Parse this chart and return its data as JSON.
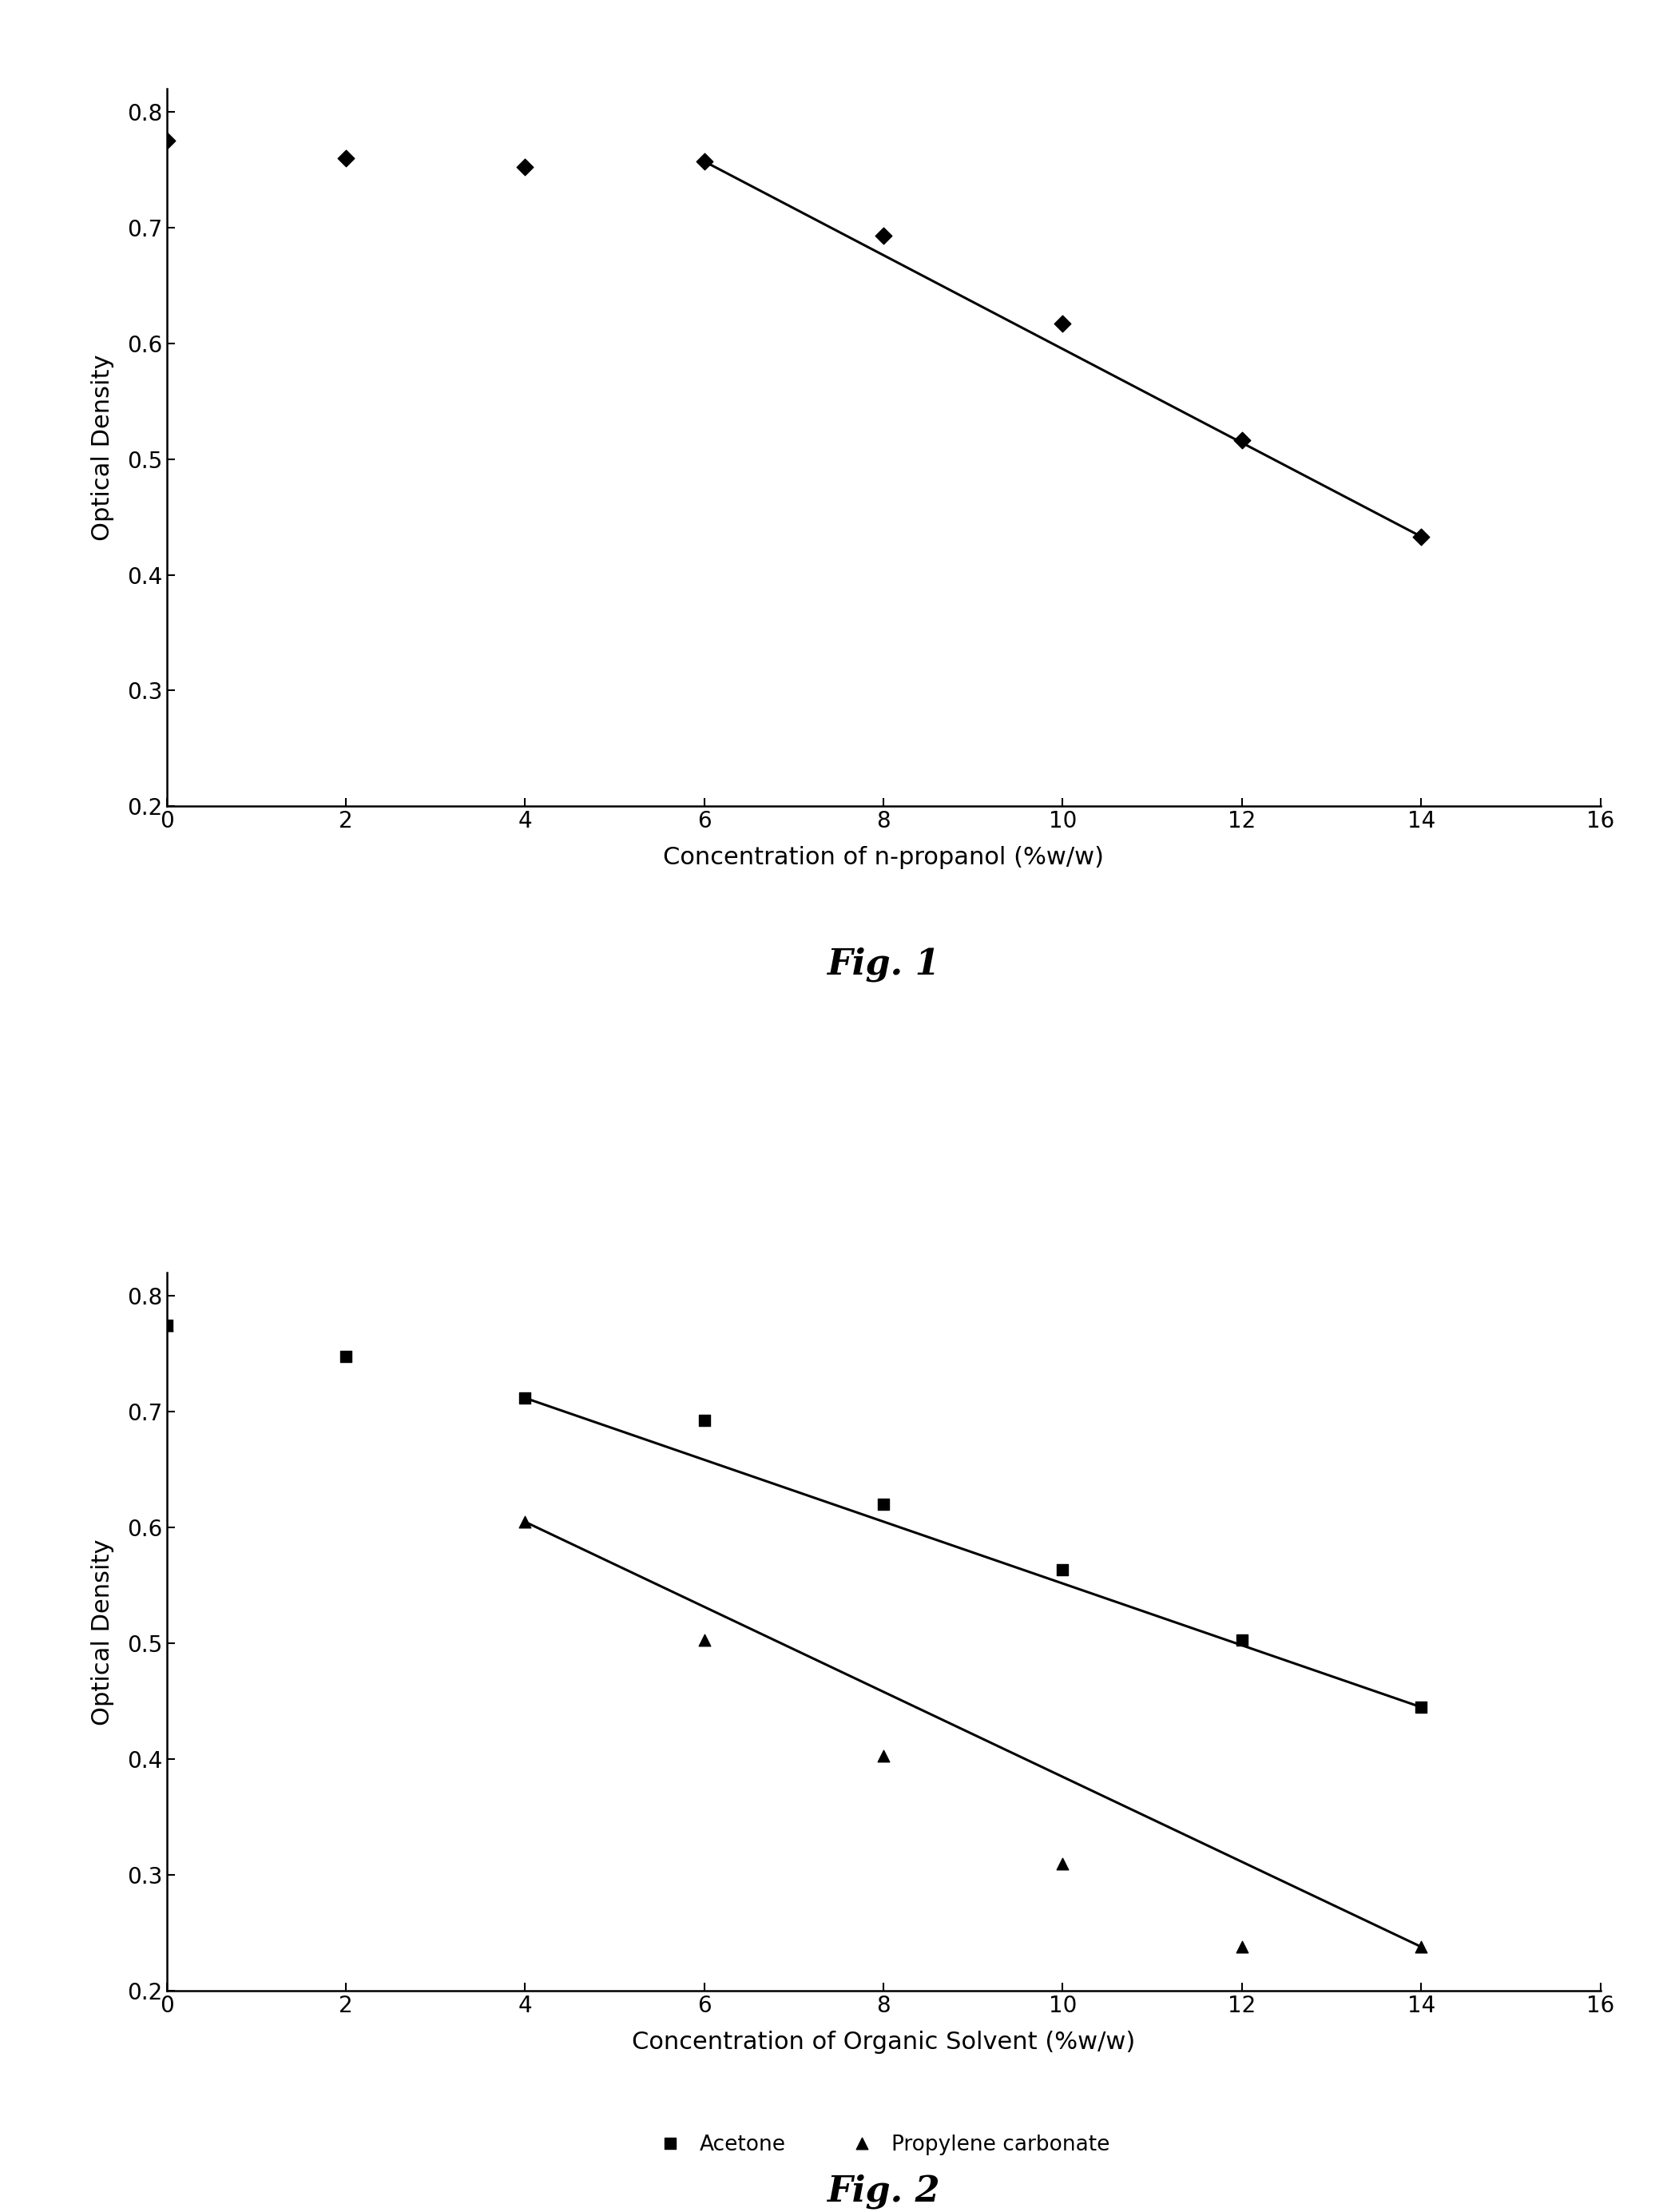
{
  "fig1": {
    "xlabel": "Concentration of n-propanol (%w/w)",
    "ylabel": "Optical Density",
    "xlim": [
      0,
      16
    ],
    "ylim": [
      0.2,
      0.82
    ],
    "xticks": [
      0,
      2,
      4,
      6,
      8,
      10,
      12,
      14,
      16
    ],
    "yticks": [
      0.2,
      0.3,
      0.4,
      0.5,
      0.6,
      0.7,
      0.8
    ],
    "scatter_x": [
      0,
      2,
      4,
      6,
      8,
      10,
      12,
      14
    ],
    "scatter_y": [
      0.775,
      0.76,
      0.752,
      0.757,
      0.693,
      0.617,
      0.516,
      0.433
    ],
    "line_x": [
      6,
      14
    ],
    "line_y": [
      0.757,
      0.433
    ],
    "caption": "Fig. 1"
  },
  "fig2": {
    "xlabel": "Concentration of Organic Solvent (%w/w)",
    "ylabel": "Optical Density",
    "xlim": [
      0,
      16
    ],
    "ylim": [
      0.2,
      0.82
    ],
    "xticks": [
      0,
      2,
      4,
      6,
      8,
      10,
      12,
      14,
      16
    ],
    "yticks": [
      0.2,
      0.3,
      0.4,
      0.5,
      0.6,
      0.7,
      0.8
    ],
    "acetone_x": [
      0,
      2,
      4,
      6,
      8,
      10,
      12,
      14
    ],
    "acetone_y": [
      0.775,
      0.748,
      0.712,
      0.693,
      0.62,
      0.564,
      0.503,
      0.445
    ],
    "propylene_x": [
      0,
      4,
      6,
      8,
      10,
      12,
      14
    ],
    "propylene_y": [
      0.775,
      0.605,
      0.503,
      0.403,
      0.31,
      0.238,
      0.238
    ],
    "acetone_line_x": [
      4,
      14
    ],
    "acetone_line_y": [
      0.712,
      0.445
    ],
    "propylene_line_x": [
      4,
      14
    ],
    "propylene_line_y": [
      0.605,
      0.238
    ],
    "legend_labels": [
      "Acetone",
      "Propylene carbonate"
    ],
    "caption": "Fig. 2"
  },
  "background_color": "#ffffff",
  "tick_fontsize": 20,
  "label_fontsize": 22,
  "caption_fontsize": 32,
  "legend_fontsize": 19,
  "marker_size": 110,
  "line_width": 2.2
}
